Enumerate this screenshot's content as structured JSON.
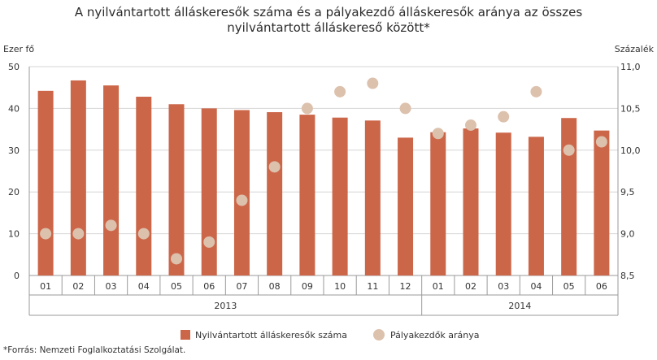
{
  "title_line1": "A nyilvántartott álláskeresők száma és a pályakezdő álláskeresők aránya az összes",
  "title_line2": "nyilvántartott álláskereső között*",
  "footnote": "*Forrás: Nemzeti Foglalkoztatási Szolgálat.",
  "chart_data": {
    "type": "bar",
    "categories": [
      "01",
      "02",
      "03",
      "04",
      "05",
      "06",
      "07",
      "08",
      "09",
      "10",
      "11",
      "12",
      "01",
      "02",
      "03",
      "04",
      "05",
      "06"
    ],
    "year_groups": [
      {
        "label": "2013",
        "count": 12
      },
      {
        "label": "2014",
        "count": 6
      }
    ],
    "ylabel_left": "Ezer fő",
    "ylabel_right": "Százalék",
    "ylim_left": [
      0,
      50
    ],
    "ylim_right": [
      8.5,
      11.0
    ],
    "yticks_left": [
      "0",
      "10",
      "20",
      "30",
      "40",
      "50"
    ],
    "yticks_right": [
      "8,5",
      "9,0",
      "9,5",
      "10,0",
      "10,5",
      "11,0"
    ],
    "grid": true,
    "legend_position": "bottom",
    "series": [
      {
        "name": "Nyilvántartott álláskeresők száma",
        "kind": "bar",
        "axis": "left",
        "color": "#cc6649",
        "values": [
          44.2,
          46.7,
          45.5,
          42.8,
          41.0,
          40.0,
          39.6,
          39.1,
          38.5,
          37.8,
          37.1,
          33.0,
          34.3,
          35.2,
          34.2,
          33.2,
          37.7,
          34.7
        ]
      },
      {
        "name": "Pályakezdők aránya",
        "kind": "scatter",
        "axis": "right",
        "color": "#dcc1ad",
        "values": [
          9.0,
          9.0,
          9.1,
          9.0,
          8.7,
          8.9,
          9.4,
          9.8,
          10.5,
          10.7,
          10.8,
          10.5,
          10.2,
          10.3,
          10.4,
          10.7,
          10.0,
          10.1
        ]
      }
    ]
  }
}
